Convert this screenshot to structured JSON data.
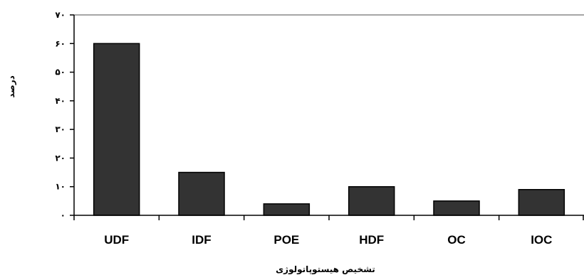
{
  "chart_data": {
    "type": "bar",
    "title": "",
    "xlabel": "تشخیص هیستوپاتولوژی",
    "ylabel": "درصد",
    "categories": [
      "UDF",
      "IDF",
      "POE",
      "HDF",
      "OC",
      "IOC"
    ],
    "values": [
      60,
      15,
      4,
      10,
      5,
      9
    ],
    "ylim": [
      0,
      70
    ],
    "yticks": [
      0,
      10,
      20,
      30,
      40,
      50,
      60,
      70
    ],
    "ytick_labels": [
      "۰",
      "۱۰",
      "۲۰",
      "۳۰",
      "۴۰",
      "۵۰",
      "۶۰",
      "۷۰"
    ],
    "grid": false,
    "top_gridline": true,
    "bar_color": "#333333",
    "bar_edge_color": "#000000",
    "gridline_color": "#888888"
  }
}
